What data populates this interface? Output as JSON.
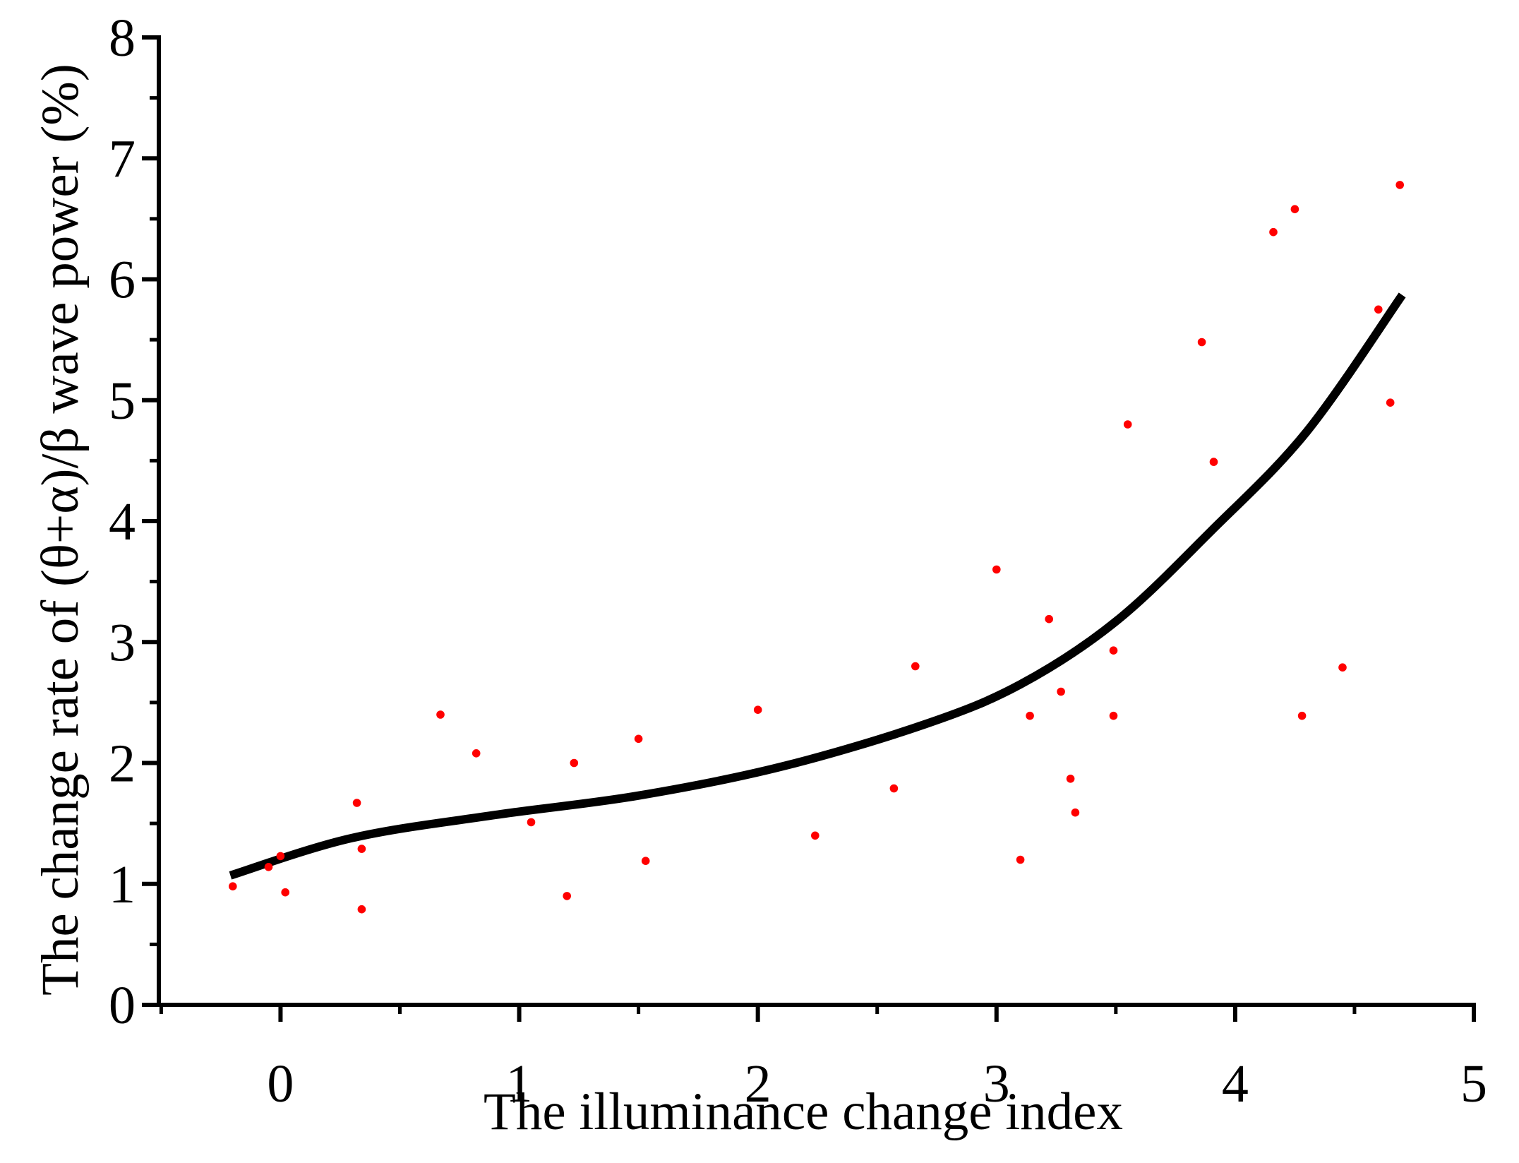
{
  "figure": {
    "background": "#ffffff"
  },
  "chart_data": {
    "type": "scatter",
    "title": "",
    "xlabel": "The illuminance change index",
    "ylabel": "The change rate of (θ+α)/β wave power  (%)",
    "axis_color": "#000000",
    "grid": false,
    "legend": false,
    "x_axis": {
      "min": -0.51,
      "max": 5.0,
      "major_ticks": [
        0,
        1,
        2,
        3,
        4,
        5
      ],
      "minor_ticks": [
        -0.5,
        0.5,
        1.5,
        2.5,
        3.5,
        4.5
      ],
      "tick_labels": [
        "0",
        "1",
        "2",
        "3",
        "4",
        "5"
      ]
    },
    "y_axis": {
      "min": 0,
      "max": 8,
      "major_ticks": [
        0,
        1,
        2,
        3,
        4,
        5,
        6,
        7,
        8
      ],
      "minor_ticks": [
        0.5,
        1.5,
        2.5,
        3.5,
        4.5,
        5.5,
        6.5,
        7.5
      ],
      "tick_labels": [
        "0",
        "1",
        "2",
        "3",
        "4",
        "5",
        "6",
        "7",
        "8"
      ]
    },
    "series": [
      {
        "name": "observations",
        "type": "scatter",
        "marker": "circle",
        "color": "#ff0000",
        "marker_radius": 5.8,
        "points": [
          [
            -0.2,
            0.98
          ],
          [
            -0.05,
            1.14
          ],
          [
            0.0,
            1.23
          ],
          [
            0.02,
            0.93
          ],
          [
            0.32,
            1.67
          ],
          [
            0.34,
            1.29
          ],
          [
            0.34,
            0.79
          ],
          [
            0.67,
            2.4
          ],
          [
            0.82,
            2.08
          ],
          [
            1.05,
            1.51
          ],
          [
            1.2,
            0.9
          ],
          [
            1.23,
            2.0
          ],
          [
            1.5,
            2.2
          ],
          [
            1.53,
            1.19
          ],
          [
            2.0,
            2.44
          ],
          [
            2.24,
            1.4
          ],
          [
            2.57,
            1.79
          ],
          [
            2.66,
            2.8
          ],
          [
            3.0,
            3.6
          ],
          [
            3.1,
            1.2
          ],
          [
            3.14,
            2.39
          ],
          [
            3.22,
            3.19
          ],
          [
            3.27,
            2.59
          ],
          [
            3.31,
            1.87
          ],
          [
            3.33,
            1.59
          ],
          [
            3.49,
            2.93
          ],
          [
            3.49,
            2.39
          ],
          [
            3.55,
            4.8
          ],
          [
            3.86,
            5.48
          ],
          [
            3.91,
            4.49
          ],
          [
            4.16,
            6.39
          ],
          [
            4.25,
            6.58
          ],
          [
            4.28,
            2.39
          ],
          [
            4.45,
            2.79
          ],
          [
            4.6,
            5.75
          ],
          [
            4.65,
            4.98
          ],
          [
            4.69,
            6.78
          ]
        ]
      },
      {
        "name": "fit-curve",
        "type": "line",
        "color": "#000000",
        "stroke_width": 12,
        "points": [
          [
            -0.21,
            1.07
          ],
          [
            0.3,
            1.38
          ],
          [
            0.9,
            1.57
          ],
          [
            1.5,
            1.73
          ],
          [
            2.1,
            1.97
          ],
          [
            2.7,
            2.32
          ],
          [
            3.1,
            2.65
          ],
          [
            3.5,
            3.17
          ],
          [
            3.9,
            3.92
          ],
          [
            4.3,
            4.74
          ],
          [
            4.7,
            5.87
          ]
        ]
      }
    ]
  }
}
